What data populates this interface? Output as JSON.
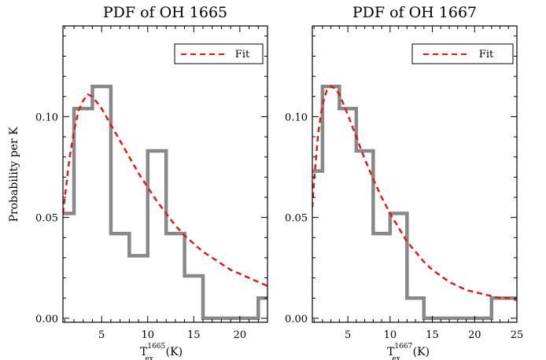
{
  "ylabel": "Probability per K",
  "legend_label": "Fit",
  "colors": {
    "histogram": "#888888",
    "fit": "#ee1111",
    "axes": "#000000"
  },
  "chart_data": [
    {
      "type": "bar",
      "title": "PDF of OH 1665",
      "xlabel": {
        "prefix": "T",
        "superscript": "1665",
        "subscript": "ex",
        "unit": "(K)"
      },
      "ylabel": "Probability per K",
      "xlim": [
        0.8,
        23
      ],
      "ylim": [
        -0.002,
        0.145
      ],
      "xticks": [
        5,
        10,
        15,
        20
      ],
      "yticks": [
        0.0,
        0.05,
        0.1
      ],
      "ytick_labels": [
        "0.00",
        "0.05",
        "0.10"
      ],
      "histogram": {
        "bin_edges": [
          0,
          2,
          4,
          6,
          8,
          10,
          12,
          14,
          16,
          18,
          20,
          22,
          24
        ],
        "values": [
          0.052,
          0.104,
          0.115,
          0.042,
          0.031,
          0.083,
          0.042,
          0.021,
          0.0,
          0.0,
          0.0,
          0.01
        ]
      },
      "fit": {
        "x": [
          0.8,
          1.5,
          2,
          2.5,
          3,
          3.5,
          4,
          5,
          6,
          7,
          8,
          9,
          10,
          11,
          12,
          13,
          14,
          15,
          16,
          17,
          18,
          19,
          20,
          21,
          22,
          23
        ],
        "y": [
          0.052,
          0.079,
          0.093,
          0.103,
          0.108,
          0.111,
          0.11,
          0.104,
          0.096,
          0.088,
          0.08,
          0.072,
          0.065,
          0.058,
          0.052,
          0.046,
          0.041,
          0.037,
          0.033,
          0.03,
          0.027,
          0.024,
          0.022,
          0.02,
          0.018,
          0.016
        ]
      },
      "grid": false,
      "legend_position": "top-right"
    },
    {
      "type": "bar",
      "title": "PDF of OH 1667",
      "xlabel": {
        "prefix": "T",
        "superscript": "1667",
        "subscript": "ex",
        "unit": "(K)"
      },
      "xlim": [
        0.8,
        25
      ],
      "ylim": [
        -0.002,
        0.145
      ],
      "xticks": [
        5,
        10,
        15,
        20,
        25
      ],
      "yticks": [
        0.0,
        0.05,
        0.1
      ],
      "ytick_labels": [
        "0.00",
        "0.05",
        "0.10"
      ],
      "histogram": {
        "bin_edges": [
          0,
          2,
          4,
          6,
          8,
          10,
          12,
          14,
          16,
          18,
          20,
          22,
          24,
          26
        ],
        "values": [
          0.073,
          0.115,
          0.104,
          0.083,
          0.042,
          0.052,
          0.01,
          0.0,
          0.0,
          0.0,
          0.0,
          0.01,
          0.01
        ]
      },
      "fit": {
        "x": [
          0.8,
          1,
          1.5,
          2,
          2.5,
          3,
          3.5,
          4,
          5,
          6,
          7,
          8,
          9,
          10,
          11,
          12,
          13,
          14,
          15,
          16,
          17,
          18,
          19,
          20,
          21,
          22,
          23,
          24,
          25
        ],
        "y": [
          0.055,
          0.068,
          0.092,
          0.106,
          0.113,
          0.115,
          0.114,
          0.111,
          0.101,
          0.09,
          0.079,
          0.069,
          0.06,
          0.052,
          0.045,
          0.038,
          0.033,
          0.028,
          0.024,
          0.021,
          0.018,
          0.016,
          0.014,
          0.013,
          0.012,
          0.011,
          0.01,
          0.01,
          0.009
        ]
      },
      "grid": false,
      "legend_position": "top-right"
    }
  ]
}
